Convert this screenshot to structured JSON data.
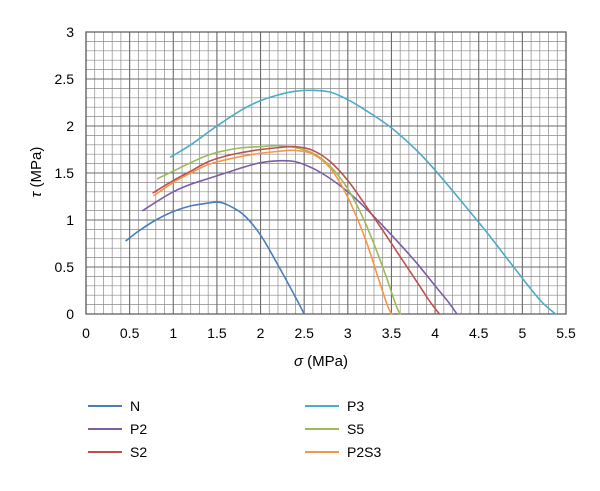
{
  "chart_data": {
    "type": "line",
    "xlabel_var": "σ",
    "xlabel_unit": " (MPa)",
    "ylabel_var": "τ",
    "ylabel_unit": " (MPa)",
    "xlim": [
      0,
      5.5
    ],
    "ylim": [
      0,
      3
    ],
    "xticks": [
      "0",
      "0.5",
      "1",
      "1.5",
      "2",
      "2.5",
      "3",
      "3.5",
      "4",
      "4.5",
      "5",
      "5.5"
    ],
    "yticks": [
      "0",
      "0.5",
      "1",
      "1.5",
      "2",
      "2.5",
      "3"
    ],
    "grid": true,
    "legend_position": "bottom",
    "series": [
      {
        "name": "N",
        "color": "#4a7ebb",
        "x": [
          0.46,
          0.6,
          0.8,
          1.0,
          1.2,
          1.4,
          1.5,
          1.6,
          1.8,
          2.0,
          2.2,
          2.4,
          2.5
        ],
        "y": [
          0.78,
          0.88,
          1.0,
          1.09,
          1.15,
          1.18,
          1.19,
          1.17,
          1.06,
          0.84,
          0.52,
          0.18,
          0.0
        ]
      },
      {
        "name": "P3",
        "color": "#4bacc6",
        "x": [
          0.97,
          1.2,
          1.5,
          1.8,
          2.0,
          2.2,
          2.4,
          2.6,
          2.8,
          3.0,
          3.2,
          3.5,
          3.8,
          4.0,
          4.3,
          4.6,
          4.9,
          5.2,
          5.38
        ],
        "y": [
          1.67,
          1.8,
          2.0,
          2.18,
          2.27,
          2.33,
          2.37,
          2.38,
          2.36,
          2.28,
          2.17,
          1.98,
          1.73,
          1.53,
          1.2,
          0.86,
          0.5,
          0.15,
          0.0
        ]
      },
      {
        "name": "P2",
        "color": "#7b5ea7",
        "x": [
          0.65,
          0.8,
          1.0,
          1.2,
          1.4,
          1.6,
          1.8,
          2.0,
          2.2,
          2.4,
          2.6,
          2.8,
          3.0,
          3.2,
          3.4,
          3.6,
          3.8,
          4.0,
          4.15,
          4.25
        ],
        "y": [
          1.1,
          1.19,
          1.3,
          1.38,
          1.44,
          1.5,
          1.56,
          1.61,
          1.63,
          1.62,
          1.55,
          1.44,
          1.3,
          1.13,
          0.94,
          0.74,
          0.53,
          0.3,
          0.13,
          0.0
        ]
      },
      {
        "name": "S5",
        "color": "#9bbb59",
        "x": [
          0.82,
          1.0,
          1.2,
          1.4,
          1.6,
          1.8,
          2.0,
          2.2,
          2.4,
          2.6,
          2.8,
          3.0,
          3.2,
          3.4,
          3.55,
          3.6
        ],
        "y": [
          1.44,
          1.52,
          1.61,
          1.69,
          1.74,
          1.77,
          1.78,
          1.79,
          1.77,
          1.71,
          1.57,
          1.33,
          0.97,
          0.5,
          0.1,
          0.0
        ]
      },
      {
        "name": "S2",
        "color": "#c0504d",
        "x": [
          0.77,
          1.0,
          1.2,
          1.4,
          1.6,
          1.8,
          2.0,
          2.2,
          2.4,
          2.6,
          2.8,
          3.0,
          3.2,
          3.4,
          3.6,
          3.8,
          3.95,
          4.05
        ],
        "y": [
          1.29,
          1.42,
          1.52,
          1.62,
          1.68,
          1.72,
          1.75,
          1.77,
          1.78,
          1.74,
          1.62,
          1.42,
          1.16,
          0.89,
          0.61,
          0.33,
          0.12,
          0.0
        ]
      },
      {
        "name": "P2S3",
        "color": "#f79646",
        "x": [
          0.78,
          1.0,
          1.2,
          1.4,
          1.6,
          1.8,
          2.0,
          2.2,
          2.4,
          2.6,
          2.8,
          3.0,
          3.2,
          3.35,
          3.45,
          3.5
        ],
        "y": [
          1.26,
          1.4,
          1.5,
          1.59,
          1.64,
          1.68,
          1.71,
          1.73,
          1.74,
          1.7,
          1.55,
          1.24,
          0.8,
          0.38,
          0.1,
          0.0
        ]
      }
    ]
  }
}
